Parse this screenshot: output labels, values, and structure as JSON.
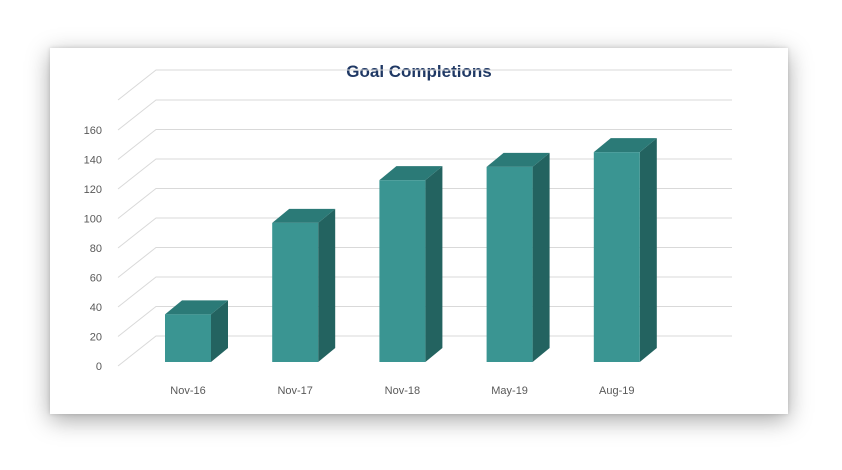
{
  "chart_data": {
    "type": "bar",
    "style": "3d-column",
    "title": "Goal Completions",
    "categories": [
      "Nov-16",
      "Nov-17",
      "Nov-18",
      "May-19",
      "Aug-19"
    ],
    "series": [
      {
        "values": [
          35,
          97,
          126,
          135,
          145
        ]
      }
    ],
    "ylim": [
      0,
      160
    ],
    "yticks": [
      0,
      20,
      40,
      60,
      80,
      100,
      120,
      140,
      160
    ],
    "xlabel": "",
    "ylabel": "",
    "grid": true,
    "legend": "none"
  },
  "colors": {
    "bar_front": "#3a9592",
    "bar_side": "#236360",
    "bar_top": "#2b7a77",
    "grid": "#d9d9d9",
    "title": "#1f3864"
  }
}
